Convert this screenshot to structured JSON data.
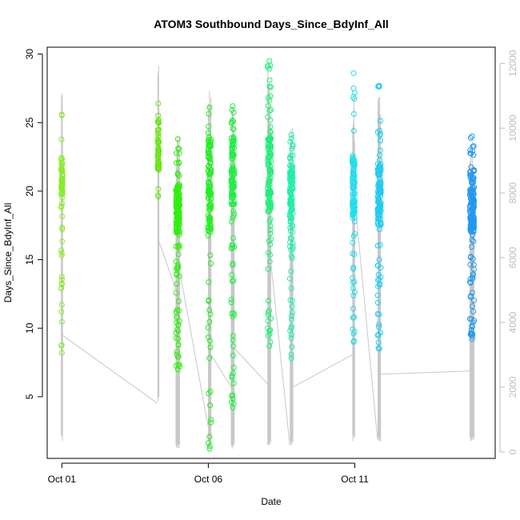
{
  "chart_data": {
    "type": "scatter",
    "title": "ATOM3 Southbound Days_Since_BdyInf_All",
    "xlabel": "Date",
    "ylabel": "Days_Since_BdyInf_All",
    "xlim": [
      "2023-09-30T12:00",
      "2023-10-15T19:00"
    ],
    "ylim": [
      0.5,
      30.5
    ],
    "y2lim": [
      -200,
      12500
    ],
    "x_ticks": [
      {
        "value": "2023-10-01T00:00",
        "label": "Oct 01"
      },
      {
        "value": "2023-10-06T00:00",
        "label": "Oct 06"
      },
      {
        "value": "2023-10-11T00:00",
        "label": "Oct 11"
      }
    ],
    "y_ticks": [
      5,
      10,
      15,
      20,
      25,
      30
    ],
    "y2_ticks": [
      0,
      2000,
      4000,
      6000,
      8000,
      10000,
      12000
    ],
    "grid": false,
    "line_color": "#c8c8c8",
    "clusters": [
      {
        "x": "2023-10-01T00:00",
        "spread_h": 1.2,
        "y_range": [
          8.2,
          25.6
        ],
        "dense_range": [
          19.5,
          22.5
        ],
        "n": 70,
        "color": "#88ee22",
        "line_y2": [
          300,
          11600
        ],
        "connector_y2": [
          3200,
          3600
        ]
      },
      {
        "x": "2023-10-04T07:00",
        "spread_h": 1.2,
        "y_range": [
          19.6,
          26.4
        ],
        "dense_range": [
          21.5,
          24.0
        ],
        "n": 60,
        "color": "#6ae616",
        "line_y2": [
          1500,
          12000
        ],
        "connector_y2": [
          1500,
          6500
        ]
      },
      {
        "x": "2023-10-04T23:00",
        "spread_h": 3.0,
        "y_range": [
          7.0,
          23.8
        ],
        "dense_range": [
          17.0,
          20.5
        ],
        "n": 190,
        "color": "#33ee11",
        "line_y2": [
          100,
          10300
        ],
        "connector_y2": [
          5000,
          5600
        ]
      },
      {
        "x": "2023-10-06T01:00",
        "spread_h": 2.5,
        "y_range": [
          1.2,
          26.1
        ],
        "dense_range": [
          17.0,
          24.0
        ],
        "n": 130,
        "color": "#22ee22",
        "line_y2": [
          100,
          11800
        ],
        "connector_y2": [
          800,
          3000
        ]
      },
      {
        "x": "2023-10-06T20:00",
        "spread_h": 2.5,
        "y_range": [
          4.2,
          26.2
        ],
        "dense_range": [
          19.0,
          24.0
        ],
        "n": 130,
        "color": "#22ee44",
        "line_y2": [
          100,
          10800
        ],
        "connector_y2": [
          2000,
          3200
        ]
      },
      {
        "x": "2023-10-08T02:00",
        "spread_h": 2.8,
        "y_range": [
          8.7,
          29.5
        ],
        "dense_range": [
          18.5,
          24.0
        ],
        "n": 140,
        "color": "#22ee77",
        "line_y2": [
          200,
          12000
        ],
        "connector_y2": [
          2100,
          5800
        ]
      },
      {
        "x": "2023-10-08T20:00",
        "spread_h": 2.5,
        "y_range": [
          7.8,
          24.1
        ],
        "dense_range": [
          17.0,
          21.5
        ],
        "n": 120,
        "color": "#22eeaa",
        "line_y2": [
          200,
          10300
        ],
        "connector_y2": [
          200,
          2000
        ]
      },
      {
        "x": "2023-10-10T23:00",
        "spread_h": 2.0,
        "y_range": [
          9.0,
          28.6
        ],
        "dense_range": [
          18.0,
          22.5
        ],
        "n": 110,
        "color": "#22ddee",
        "line_y2": [
          300,
          11200
        ],
        "connector_y2": [
          3000,
          7800
        ]
      },
      {
        "x": "2023-10-11T20:00",
        "spread_h": 2.8,
        "y_range": [
          8.5,
          27.7
        ],
        "dense_range": [
          17.5,
          22.0
        ],
        "n": 140,
        "color": "#22ccee",
        "line_y2": [
          300,
          11300
        ],
        "connector_y2": [
          400,
          2400
        ]
      },
      {
        "x": "2023-10-15T00:00",
        "spread_h": 3.5,
        "y_range": [
          9.2,
          24.0
        ],
        "dense_range": [
          17.0,
          21.5
        ],
        "n": 170,
        "color": "#2299ee",
        "line_y2": [
          300,
          9700
        ],
        "connector_y2": [
          2500,
          2500
        ]
      }
    ]
  }
}
